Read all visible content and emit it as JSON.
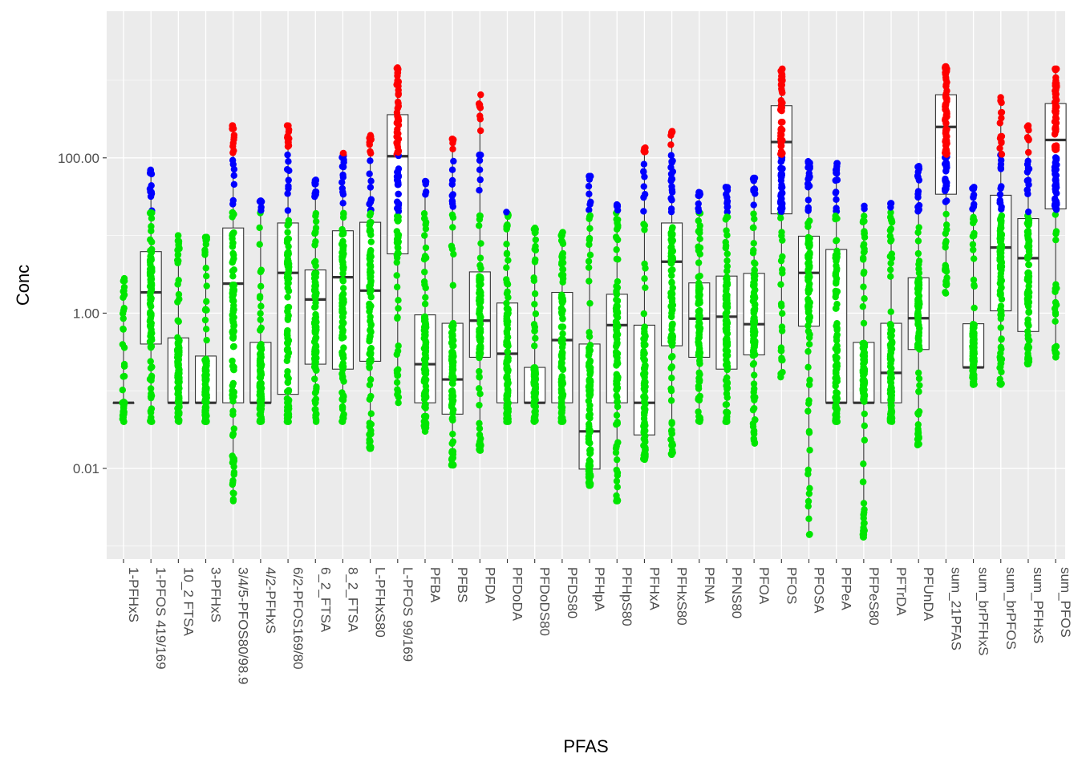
{
  "chart_data": {
    "type": "boxplot",
    "xlabel": "PFAS",
    "ylabel": "Conc",
    "y_scale": "log10",
    "ylim": [
      0.0009,
      1500
    ],
    "y_ticks": [
      0.01,
      1.0,
      100.0
    ],
    "y_tick_labels": [
      "0.01",
      "1.00",
      "100.00"
    ],
    "point_colors": {
      "low": "#00e600",
      "mid": "#0000ff",
      "high": "#ff0000"
    },
    "point_color_thresholds": {
      "mid_from": 20,
      "high_from": 110
    },
    "panel_color": "#ebebeb",
    "grid": true,
    "categories": [
      "1-PFHxS",
      "1-PFOS 419/169",
      "10_2 FTSA",
      "3-PFHxS",
      "3/4/5-PFOS80/98.9",
      "4/2-PFHxS",
      "6/2-PFOS169/80",
      "6_2_FTSA",
      "8_2_FTSA",
      "L-PFHxS80",
      "L-PFOS 99/169",
      "PFBA",
      "PFBS",
      "PFDA",
      "PFDoDA",
      "PFDoDS80",
      "PFDS80",
      "PFHpA",
      "PFHpS80",
      "PFHxA",
      "PFHxS80",
      "PFNA",
      "PFNS80",
      "PFOA",
      "PFOS",
      "PFOSA",
      "PFPeA",
      "PFPeS80",
      "PFTrDA",
      "PFUnDA",
      "sum_21PFAS",
      "sum_brPFHxS",
      "sum_brPFOS",
      "sum_PFHxS",
      "sum_PFOS"
    ],
    "boxes": [
      {
        "min": 0.04,
        "q1": 0.07,
        "median": 0.07,
        "q3": 0.07,
        "max": 2.8,
        "pmin": 0.04,
        "pmax": 2.8
      },
      {
        "min": 0.04,
        "q1": 0.4,
        "median": 1.85,
        "q3": 6.2,
        "max": 70,
        "pmin": 0.04,
        "pmax": 70
      },
      {
        "min": 0.04,
        "q1": 0.07,
        "median": 0.07,
        "q3": 0.48,
        "max": 10,
        "pmin": 0.04,
        "pmax": 10
      },
      {
        "min": 0.04,
        "q1": 0.07,
        "median": 0.07,
        "q3": 0.28,
        "max": 9.5,
        "pmin": 0.04,
        "pmax": 9.5
      },
      {
        "min": 0.0038,
        "q1": 0.07,
        "median": 2.4,
        "q3": 12.5,
        "max": 260,
        "pmin": 0.0038,
        "pmax": 260
      },
      {
        "min": 0.04,
        "q1": 0.07,
        "median": 0.07,
        "q3": 0.42,
        "max": 28,
        "pmin": 0.04,
        "pmax": 28
      },
      {
        "min": 0.04,
        "q1": 0.09,
        "median": 3.3,
        "q3": 14.5,
        "max": 260,
        "pmin": 0.04,
        "pmax": 260
      },
      {
        "min": 0.04,
        "q1": 0.22,
        "median": 1.5,
        "q3": 3.6,
        "max": 52,
        "pmin": 0.04,
        "pmax": 52
      },
      {
        "min": 0.04,
        "q1": 0.19,
        "median": 2.9,
        "q3": 11.5,
        "max": 115,
        "pmin": 0.04,
        "pmax": 115
      },
      {
        "min": 0.018,
        "q1": 0.24,
        "median": 1.95,
        "q3": 14.8,
        "max": 195,
        "pmin": 0.018,
        "pmax": 195
      },
      {
        "min": 0.07,
        "q1": 5.8,
        "median": 105,
        "q3": 360,
        "max": 1450,
        "pmin": 0.07,
        "pmax": 1450
      },
      {
        "min": 0.03,
        "q1": 0.07,
        "median": 0.22,
        "q3": 0.95,
        "max": 50,
        "pmin": 0.03,
        "pmax": 50
      },
      {
        "min": 0.011,
        "q1": 0.05,
        "median": 0.14,
        "q3": 0.74,
        "max": 175,
        "pmin": 0.011,
        "pmax": 175
      },
      {
        "min": 0.017,
        "q1": 0.27,
        "median": 0.8,
        "q3": 3.4,
        "max": 650,
        "pmin": 0.017,
        "pmax": 650
      },
      {
        "min": 0.04,
        "q1": 0.07,
        "median": 0.3,
        "q3": 1.35,
        "max": 20,
        "pmin": 0.04,
        "pmax": 20
      },
      {
        "min": 0.04,
        "q1": 0.07,
        "median": 0.07,
        "q3": 0.2,
        "max": 12.5,
        "pmin": 0.04,
        "pmax": 12.5
      },
      {
        "min": 0.04,
        "q1": 0.07,
        "median": 0.45,
        "q3": 1.85,
        "max": 11,
        "pmin": 0.04,
        "pmax": 11
      },
      {
        "min": 0.006,
        "q1": 0.0098,
        "median": 0.03,
        "q3": 0.4,
        "max": 58,
        "pmin": 0.006,
        "pmax": 58
      },
      {
        "min": 0.0038,
        "q1": 0.07,
        "median": 0.7,
        "q3": 1.75,
        "max": 25,
        "pmin": 0.0038,
        "pmax": 25
      },
      {
        "min": 0.013,
        "q1": 0.027,
        "median": 0.07,
        "q3": 0.7,
        "max": 135,
        "pmin": 0.013,
        "pmax": 135
      },
      {
        "min": 0.015,
        "q1": 0.38,
        "median": 4.6,
        "q3": 14.5,
        "max": 220,
        "pmin": 0.015,
        "pmax": 220
      },
      {
        "min": 0.04,
        "q1": 0.27,
        "median": 0.85,
        "q3": 2.45,
        "max": 36,
        "pmin": 0.04,
        "pmax": 36
      },
      {
        "min": 0.04,
        "q1": 0.19,
        "median": 0.9,
        "q3": 3.0,
        "max": 42,
        "pmin": 0.04,
        "pmax": 42
      },
      {
        "min": 0.021,
        "q1": 0.29,
        "median": 0.72,
        "q3": 3.25,
        "max": 55,
        "pmin": 0.021,
        "pmax": 55
      },
      {
        "min": 0.15,
        "q1": 19,
        "median": 160,
        "q3": 470,
        "max": 1400,
        "pmin": 0.15,
        "pmax": 1400
      },
      {
        "min": 0.0014,
        "q1": 0.68,
        "median": 3.3,
        "q3": 9.8,
        "max": 90,
        "pmin": 0.0014,
        "pmax": 90
      },
      {
        "min": 0.04,
        "q1": 0.07,
        "median": 0.07,
        "q3": 6.6,
        "max": 85,
        "pmin": 0.04,
        "pmax": 85
      },
      {
        "min": 0.0013,
        "q1": 0.07,
        "median": 0.07,
        "q3": 0.42,
        "max": 24,
        "pmin": 0.0013,
        "pmax": 24
      },
      {
        "min": 0.04,
        "q1": 0.07,
        "median": 0.17,
        "q3": 0.74,
        "max": 26,
        "pmin": 0.04,
        "pmax": 26
      },
      {
        "min": 0.02,
        "q1": 0.34,
        "median": 0.86,
        "q3": 2.85,
        "max": 78,
        "pmin": 0.02,
        "pmax": 78
      },
      {
        "min": 1.8,
        "q1": 34,
        "median": 250,
        "q3": 650,
        "max": 1500,
        "pmin": 1.8,
        "pmax": 1500
      },
      {
        "min": 0.12,
        "q1": 0.2,
        "median": 0.2,
        "q3": 0.73,
        "max": 42,
        "pmin": 0.12,
        "pmax": 42
      },
      {
        "min": 0.12,
        "q1": 1.07,
        "median": 7.0,
        "q3": 33,
        "max": 600,
        "pmin": 0.12,
        "pmax": 600
      },
      {
        "min": 0.22,
        "q1": 0.58,
        "median": 5.1,
        "q3": 16.5,
        "max": 260,
        "pmin": 0.22,
        "pmax": 260
      },
      {
        "min": 0.27,
        "q1": 22,
        "median": 170,
        "q3": 500,
        "max": 1400,
        "pmin": 0.27,
        "pmax": 1400
      }
    ]
  }
}
